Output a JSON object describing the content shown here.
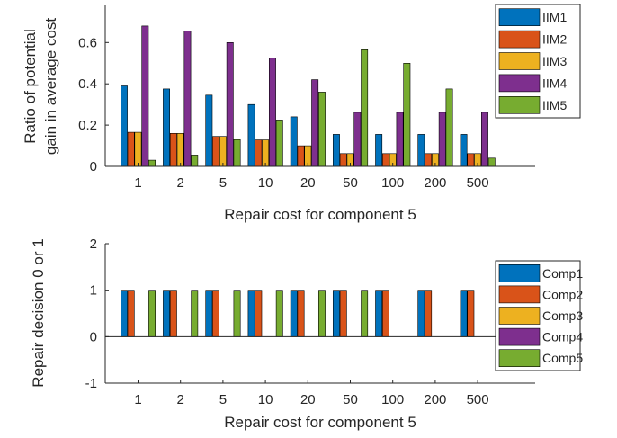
{
  "chart_data": [
    {
      "type": "bar",
      "categories": [
        "1",
        "2",
        "5",
        "10",
        "20",
        "50",
        "100",
        "200",
        "500"
      ],
      "xlabel": "Repair cost for component 5",
      "ylabel_lines": [
        "Ratio of potential",
        "gain in average cost"
      ],
      "ylim": [
        0,
        0.78
      ],
      "yticks": [
        0,
        0.2,
        0.4,
        0.6
      ],
      "ytick_labels": [
        "0",
        "0.2",
        "0.4",
        "0.6"
      ],
      "grid": false,
      "legend_position": "top-right (outside)",
      "series": [
        {
          "name": "IIM1",
          "color": "#0072BD",
          "values": [
            0.39,
            0.375,
            0.345,
            0.3,
            0.24,
            0.155,
            0.155,
            0.155,
            0.155
          ]
        },
        {
          "name": "IIM2",
          "color": "#D95319",
          "values": [
            0.165,
            0.16,
            0.145,
            0.128,
            0.1,
            0.062,
            0.062,
            0.062,
            0.062
          ]
        },
        {
          "name": "IIM3",
          "color": "#EDB120",
          "values": [
            0.165,
            0.16,
            0.145,
            0.128,
            0.1,
            0.062,
            0.062,
            0.062,
            0.062
          ]
        },
        {
          "name": "IIM4",
          "color": "#7E2F8E",
          "values": [
            0.68,
            0.655,
            0.6,
            0.525,
            0.42,
            0.262,
            0.262,
            0.262,
            0.262
          ]
        },
        {
          "name": "IIM5",
          "color": "#77AC30",
          "values": [
            0.03,
            0.055,
            0.13,
            0.225,
            0.36,
            0.565,
            0.5,
            0.375,
            0.04
          ]
        }
      ]
    },
    {
      "type": "bar",
      "categories": [
        "1",
        "2",
        "5",
        "10",
        "20",
        "50",
        "100",
        "200",
        "500"
      ],
      "xlabel": "Repair cost for component 5",
      "ylabel": "Repair decision 0 or 1",
      "ylim": [
        -1,
        2
      ],
      "yticks": [
        -1,
        0,
        1,
        2
      ],
      "ytick_labels": [
        "-1",
        "0",
        "1",
        "2"
      ],
      "grid": false,
      "legend_position": "right (outside)",
      "series": [
        {
          "name": "Comp1",
          "color": "#0072BD",
          "values": [
            1,
            1,
            1,
            1,
            1,
            1,
            1,
            1,
            1
          ]
        },
        {
          "name": "Comp2",
          "color": "#D95319",
          "values": [
            1,
            1,
            1,
            1,
            1,
            1,
            1,
            1,
            1
          ]
        },
        {
          "name": "Comp3",
          "color": "#EDB120",
          "values": [
            0,
            0,
            0,
            0,
            0,
            0,
            0,
            0,
            0
          ]
        },
        {
          "name": "Comp4",
          "color": "#7E2F8E",
          "values": [
            0,
            0,
            0,
            0,
            0,
            0,
            0,
            0,
            0
          ]
        },
        {
          "name": "Comp5",
          "color": "#77AC30",
          "values": [
            1,
            1,
            1,
            1,
            1,
            1,
            0,
            0,
            0
          ]
        }
      ]
    }
  ]
}
